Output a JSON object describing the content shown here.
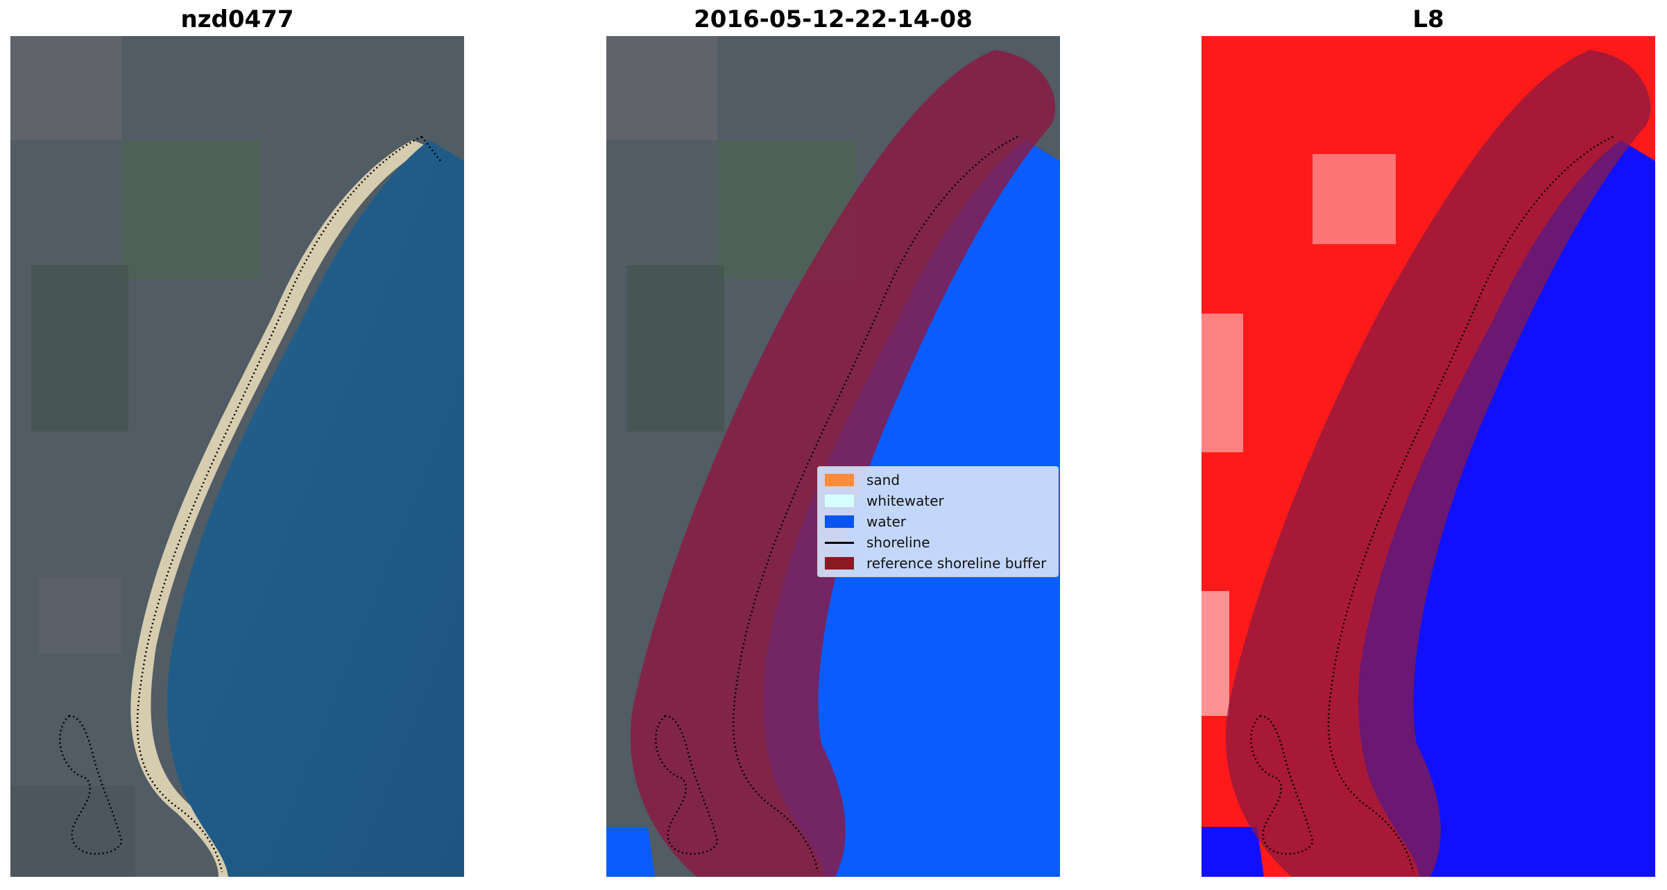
{
  "panels": [
    {
      "title": "nzd0477",
      "content": "rgb-satellite-image"
    },
    {
      "title": "2016-05-12-22-14-08",
      "content": "classified-image"
    },
    {
      "title": "L8",
      "content": "mndwi-image"
    }
  ],
  "legend": {
    "items": [
      {
        "label": "sand",
        "color": "#ff8c3a",
        "kind": "patch"
      },
      {
        "label": "whitewater",
        "color": "#d6ffff",
        "kind": "patch"
      },
      {
        "label": "water",
        "color": "#0a55f0",
        "kind": "patch"
      },
      {
        "label": "shoreline",
        "color": "#000000",
        "kind": "line"
      },
      {
        "label": "reference shoreline buffer",
        "color": "#8b1a22",
        "kind": "patch"
      }
    ]
  },
  "colors": {
    "land_rgb": "#4f5a63",
    "ocean_rgb": "#1f5a86",
    "sand_rgb": "#d8cdb0",
    "water_class": "#0a5cff",
    "buffer": "#8b1a42",
    "mndwi_land": "#ff1a1a",
    "mndwi_water": "#1010ff"
  }
}
